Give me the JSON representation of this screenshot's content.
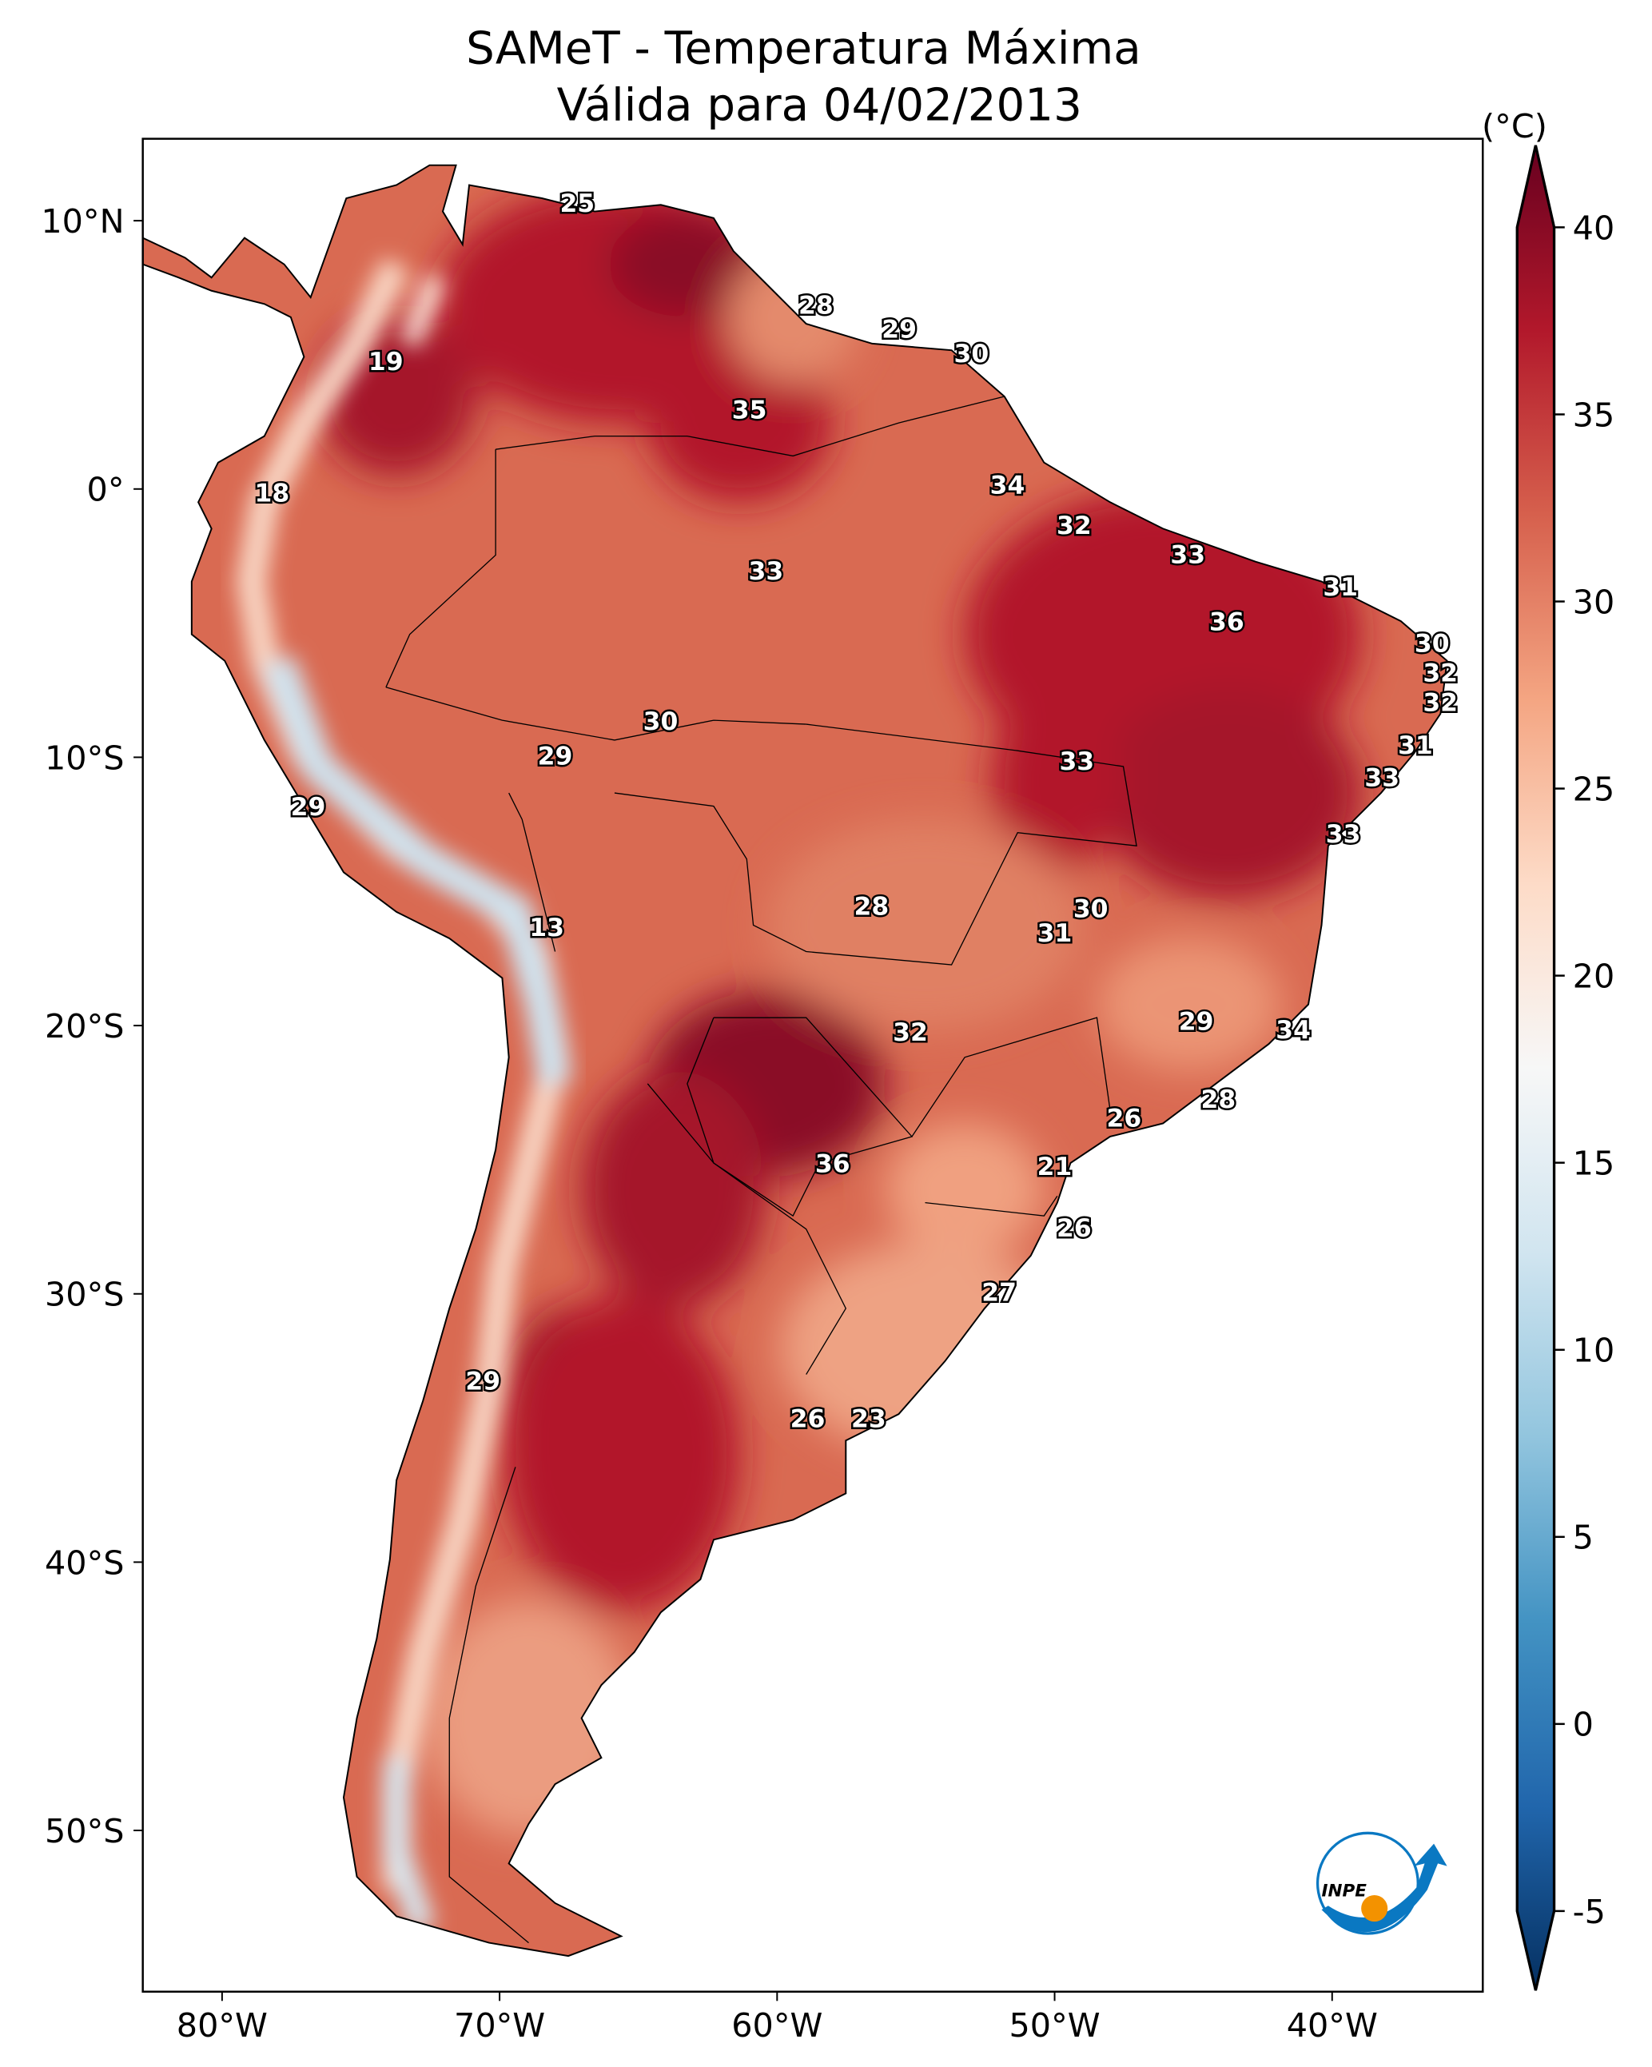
{
  "title": {
    "line1": "SAMeT - Temperatura Máxima",
    "line2": "Válida para 04/02/2013"
  },
  "colorbar": {
    "unit_label": "(°C)",
    "min": -5,
    "max": 40,
    "ticks": [
      "40",
      "35",
      "30",
      "25",
      "20",
      "15",
      "10",
      "5",
      "0",
      "-5"
    ],
    "tick_values": [
      40,
      35,
      30,
      25,
      20,
      15,
      10,
      5,
      0,
      -5
    ],
    "colormap": [
      "#053061",
      "#2166ac",
      "#4393c3",
      "#92c5de",
      "#d1e5f0",
      "#f7f7f7",
      "#fddbc7",
      "#f4a582",
      "#d6604d",
      "#b2182b",
      "#67001f"
    ]
  },
  "axes": {
    "lon_ticks": [
      "80°W",
      "70°W",
      "60°W",
      "50°W",
      "40°W"
    ],
    "lon_values": [
      -80,
      -70,
      -60,
      -50,
      -40
    ],
    "lat_ticks": [
      "10°N",
      "0°",
      "10°S",
      "20°S",
      "30°S",
      "40°S",
      "50°S"
    ],
    "lat_values": [
      10,
      0,
      -10,
      -20,
      -30,
      -40,
      -50
    ]
  },
  "logo": {
    "text": "INPE",
    "colors": [
      "#0a78c2",
      "#f39200"
    ]
  },
  "station_labels": [
    {
      "v": "25",
      "lon": -67.2,
      "lat": 10.6
    },
    {
      "v": "28",
      "lon": -58.6,
      "lat": 6.8
    },
    {
      "v": "29",
      "lon": -55.6,
      "lat": 5.9
    },
    {
      "v": "30",
      "lon": -53.0,
      "lat": 5.0
    },
    {
      "v": "19",
      "lon": -74.1,
      "lat": 4.7
    },
    {
      "v": "35",
      "lon": -61.0,
      "lat": 2.9
    },
    {
      "v": "34",
      "lon": -51.7,
      "lat": 0.1
    },
    {
      "v": "18",
      "lon": -78.2,
      "lat": -0.2
    },
    {
      "v": "32",
      "lon": -49.3,
      "lat": -1.4
    },
    {
      "v": "33",
      "lon": -45.2,
      "lat": -2.5
    },
    {
      "v": "33",
      "lon": -60.4,
      "lat": -3.1
    },
    {
      "v": "31",
      "lon": -39.7,
      "lat": -3.7
    },
    {
      "v": "36",
      "lon": -43.8,
      "lat": -5.0
    },
    {
      "v": "30",
      "lon": -36.4,
      "lat": -5.8
    },
    {
      "v": "32",
      "lon": -36.1,
      "lat": -6.9
    },
    {
      "v": "32",
      "lon": -36.1,
      "lat": -8.0
    },
    {
      "v": "30",
      "lon": -64.2,
      "lat": -8.7
    },
    {
      "v": "31",
      "lon": -37.0,
      "lat": -9.6
    },
    {
      "v": "29",
      "lon": -68.0,
      "lat": -10.0
    },
    {
      "v": "33",
      "lon": -49.2,
      "lat": -10.2
    },
    {
      "v": "33",
      "lon": -38.2,
      "lat": -10.8
    },
    {
      "v": "29",
      "lon": -76.9,
      "lat": -11.9
    },
    {
      "v": "33",
      "lon": -39.6,
      "lat": -12.9
    },
    {
      "v": "28",
      "lon": -56.6,
      "lat": -15.6
    },
    {
      "v": "30",
      "lon": -48.7,
      "lat": -15.7
    },
    {
      "v": "13",
      "lon": -68.3,
      "lat": -16.4
    },
    {
      "v": "31",
      "lon": -50.0,
      "lat": -16.6
    },
    {
      "v": "29",
      "lon": -44.9,
      "lat": -19.9
    },
    {
      "v": "34",
      "lon": -41.4,
      "lat": -20.2
    },
    {
      "v": "32",
      "lon": -55.2,
      "lat": -20.3
    },
    {
      "v": "28",
      "lon": -44.1,
      "lat": -22.8
    },
    {
      "v": "26",
      "lon": -47.5,
      "lat": -23.5
    },
    {
      "v": "36",
      "lon": -58.0,
      "lat": -25.2
    },
    {
      "v": "21",
      "lon": -50.0,
      "lat": -25.3
    },
    {
      "v": "26",
      "lon": -49.3,
      "lat": -27.6
    },
    {
      "v": "27",
      "lon": -52.0,
      "lat": -30.0
    },
    {
      "v": "29",
      "lon": -70.6,
      "lat": -33.3
    },
    {
      "v": "26",
      "lon": -58.9,
      "lat": -34.7
    },
    {
      "v": "23",
      "lon": -56.7,
      "lat": -34.7
    }
  ]
}
